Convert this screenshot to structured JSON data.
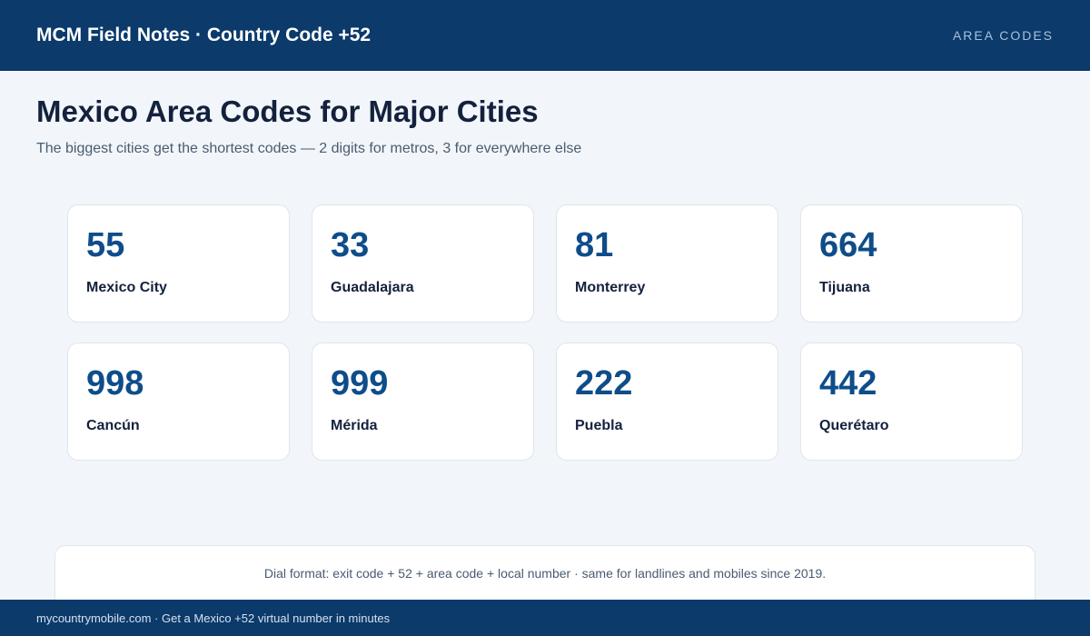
{
  "header": {
    "brand": "MCM Field Notes · Country Code +52",
    "section_tag": "AREA CODES"
  },
  "page": {
    "title": "Mexico Area Codes for Major Cities",
    "subtitle": "The biggest cities get the shortest codes — 2 digits for metros, 3 for everywhere else"
  },
  "cards": [
    {
      "code": "55",
      "city": "Mexico City"
    },
    {
      "code": "33",
      "city": "Guadalajara"
    },
    {
      "code": "81",
      "city": "Monterrey"
    },
    {
      "code": "664",
      "city": "Tijuana"
    },
    {
      "code": "998",
      "city": "Cancún"
    },
    {
      "code": "999",
      "city": "Mérida"
    },
    {
      "code": "222",
      "city": "Puebla"
    },
    {
      "code": "442",
      "city": "Querétaro"
    }
  ],
  "note": "Dial format: exit code + 52 + area code + local number · same for landlines and mobiles since 2019.",
  "footer": "mycountrymobile.com · Get a Mexico +52 virtual number in minutes",
  "colors": {
    "brand_navy": "#0b3a6b",
    "code_blue": "#0e4d8a",
    "page_background": "#f2f6fa"
  }
}
